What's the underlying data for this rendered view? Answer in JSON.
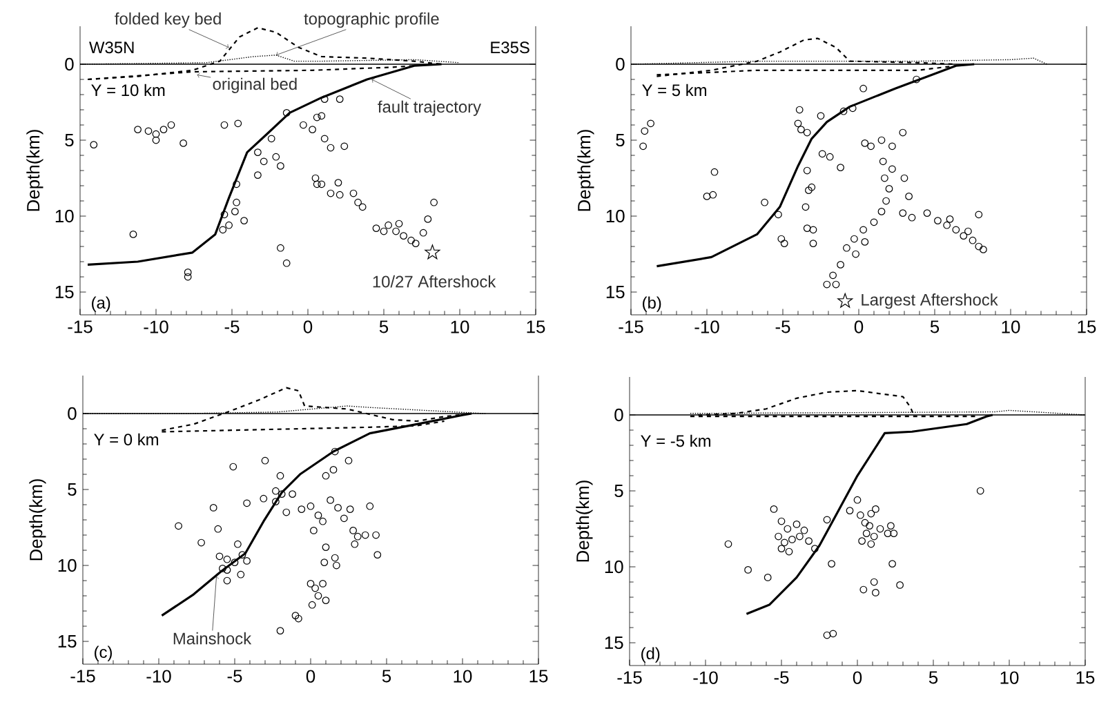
{
  "chart_data": [
    {
      "type": "scatter",
      "ylabel": "Depth(km)",
      "xlim": [
        -15,
        15
      ],
      "ylim": [
        16.5,
        -2.5
      ],
      "xticks": [
        -15,
        -10,
        -5,
        0,
        5,
        10,
        15
      ],
      "yticks": [
        0,
        5,
        10,
        15
      ],
      "ref_lines": [
        {
          "axis": "y",
          "value": 0
        }
      ],
      "annotations": [
        "W35N",
        "E35S",
        "Y = 10 km",
        "(a)",
        {
          "text": "folded key bed",
          "x": -5.2,
          "y": -1.1
        },
        {
          "text": "topographic profile",
          "x": -2.1,
          "y": -0.6
        },
        {
          "text": "original bed",
          "x": -7.3,
          "y": 0.7
        },
        {
          "text": "fault trajectory",
          "x": 4.2,
          "y": 1.0
        },
        {
          "text": "10/27 Aftershock",
          "x": 8.2,
          "y": 12.4
        }
      ],
      "series": [
        {
          "type": "line",
          "line_style": "dotted",
          "color": "#000000",
          "x": [
            -15,
            -6.7,
            -3.6,
            -2.1,
            -0.9,
            0.9,
            7,
            10
          ],
          "values": [
            0,
            -0.1,
            -0.5,
            -0.6,
            -0.2,
            -0.2,
            -0.3,
            -0.1
          ]
        },
        {
          "type": "line",
          "line_style": "dashed",
          "color": "#000000",
          "x": [
            -14.5,
            -11.2,
            -7.6,
            -5.8,
            -4.5,
            -3.3,
            -2.1,
            -0.6,
            0.9,
            3.9,
            7.0,
            8.8
          ],
          "values": [
            1.0,
            0.8,
            0.4,
            -0.2,
            -1.8,
            -2.4,
            -2.1,
            -1.1,
            -0.5,
            -0.4,
            -0.2,
            0
          ]
        },
        {
          "type": "line",
          "line_style": "dashed",
          "color": "#000000",
          "x": [
            -14.5,
            -7.6,
            0.3,
            5.5,
            7.0
          ],
          "values": [
            1.0,
            0.5,
            0.4,
            0.2,
            0.1
          ]
        },
        {
          "type": "line",
          "line_style": "solid",
          "color": "#000000",
          "x": [
            -14.5,
            -11.2,
            -7.6,
            -6.1,
            -5.2,
            -4.0,
            -2.7,
            -1.2,
            0.9,
            3.9,
            7.0,
            8.8
          ],
          "values": [
            13.2,
            13.0,
            12.4,
            11.2,
            8.8,
            5.8,
            4.6,
            3.2,
            2.2,
            1.0,
            0.1,
            0
          ]
        },
        {
          "type": "scatter",
          "marker": "circle",
          "color": "#000000",
          "x": [
            -14.1,
            -11.2,
            -10.5,
            -10,
            -9.5,
            -9,
            -10,
            -8.2,
            -5.5,
            -4.6,
            -11.5,
            -7.9,
            -7.9,
            -5.5,
            -4.8,
            -5.2,
            -4.2,
            -4.7,
            -5.6,
            -3.3,
            -2.9,
            -2.1,
            -2.4,
            -1.8,
            -3.3,
            -1.4,
            -4.7,
            -1.8,
            -1.4,
            -0.3,
            0.6,
            0.9,
            0.3,
            1.1,
            1.5,
            2.4,
            1.1,
            2.1,
            0.5,
            0.9,
            2.0,
            1.5,
            2.1,
            0.6,
            3.0,
            3.3,
            3.6,
            8.3,
            7.9,
            7.6,
            4.5,
            5.3,
            5.8,
            6.3,
            6.8,
            5.0,
            6.0,
            7.1
          ],
          "values": [
            5.3,
            4.3,
            4.4,
            4.6,
            4.3,
            4.0,
            5.0,
            5.2,
            4.0,
            3.9,
            11.2,
            13.7,
            14.0,
            9.9,
            9.7,
            10.6,
            10.3,
            9.1,
            10.9,
            5.8,
            6.4,
            6.1,
            4.9,
            6.7,
            7.3,
            3.2,
            7.9,
            12.1,
            13.1,
            4.0,
            3.5,
            3.4,
            4.3,
            4.9,
            5.5,
            5.4,
            2.3,
            2.3,
            7.5,
            7.9,
            7.8,
            8.5,
            8.6,
            7.9,
            8.5,
            9.1,
            9.4,
            9.1,
            10.2,
            11.1,
            10.8,
            10.6,
            11.0,
            11.3,
            11.6,
            11.0,
            10.5,
            11.8
          ]
        },
        {
          "type": "scatter",
          "marker": "star",
          "color": "#000000",
          "x": [
            8.2
          ],
          "values": [
            12.4
          ]
        }
      ]
    },
    {
      "type": "scatter",
      "ylabel": "Depth(km)",
      "xlim": [
        -15,
        15
      ],
      "ylim": [
        16.5,
        -2.5
      ],
      "xticks": [
        -15,
        -10,
        -5,
        0,
        5,
        10,
        15
      ],
      "yticks": [
        0,
        5,
        10,
        15
      ],
      "ref_lines": [
        {
          "axis": "y",
          "value": 0
        }
      ],
      "annotations": [
        "Y = 5 km",
        "(b)",
        {
          "text": "Largest Aftershock",
          "x": -0.9,
          "y": 15.6
        }
      ],
      "series": [
        {
          "type": "line",
          "line_style": "dotted",
          "color": "#000000",
          "x": [
            -15,
            -6.7,
            -2.1,
            3.9,
            10,
            11.5,
            12.4
          ],
          "values": [
            0,
            -0.2,
            -0.2,
            -0.2,
            -0.3,
            -0.4,
            0
          ]
        },
        {
          "type": "line",
          "line_style": "dashed",
          "color": "#000000",
          "x": [
            -13.3,
            -9.7,
            -6.7,
            -5.2,
            -3.6,
            -2.7,
            -1.5,
            -0.6,
            3.9,
            6.4
          ],
          "values": [
            0.8,
            0.4,
            -0.2,
            -0.8,
            -1.6,
            -1.7,
            -1.1,
            -0.2,
            -0.1,
            0
          ]
        },
        {
          "type": "line",
          "line_style": "dashed",
          "color": "#000000",
          "x": [
            -13.3,
            -6.7,
            3.9,
            6.4
          ],
          "values": [
            0.7,
            0.4,
            0.4,
            0.1
          ]
        },
        {
          "type": "line",
          "line_style": "solid",
          "color": "#000000",
          "x": [
            -13.3,
            -9.7,
            -6.7,
            -5.2,
            -4,
            -3.1,
            -2.1,
            -0.6,
            2.4,
            4.8,
            6.4,
            7.6
          ],
          "values": [
            13.3,
            12.7,
            11.2,
            9.4,
            6.7,
            4.9,
            3.8,
            2.8,
            1.6,
            0.7,
            0.1,
            0
          ]
        },
        {
          "type": "scatter",
          "marker": "circle",
          "color": "#000000",
          "x": [
            -14.1,
            -14.2,
            -13.7,
            -9.5,
            -10,
            -9.6,
            -6.2,
            -5.3,
            -4.9,
            -5.1,
            -4,
            -3.8,
            -3.4,
            -3.9,
            -2.5,
            -2.4,
            -1.9,
            -3.4,
            -3.1,
            -3.3,
            -3.5,
            -3.4,
            -3.0,
            -3.0,
            -1.2,
            -1.0,
            -0.4,
            0.3,
            0.4,
            0.8,
            1.5,
            2.2,
            2.9,
            1.6,
            2.2,
            1.7,
            2.0,
            1.8,
            1.5,
            1.0,
            0.3,
            -0.3,
            -0.8,
            -1.2,
            -1.7,
            -2.1,
            -1.5,
            -0.2,
            0.4,
            3.0,
            3.3,
            2.9,
            3.5,
            4.5,
            5.2,
            5.8,
            6.4,
            6.9,
            7.5,
            7.9,
            8.2,
            7.9,
            6.0,
            7.2,
            3.8
          ],
          "values": [
            4.4,
            5.4,
            3.9,
            7.1,
            8.7,
            8.6,
            9.1,
            9.9,
            11.8,
            11.5,
            3.9,
            4.3,
            4.5,
            3.0,
            3.4,
            5.9,
            6.1,
            7.0,
            8.1,
            8.3,
            9.4,
            10.8,
            10.9,
            11.8,
            6.8,
            3.1,
            2.9,
            1.6,
            5.2,
            5.4,
            5.0,
            5.4,
            4.5,
            6.4,
            6.9,
            7.5,
            8.2,
            9.0,
            9.7,
            10.4,
            10.9,
            11.5,
            12.1,
            13.2,
            13.9,
            14.5,
            14.5,
            12.5,
            11.7,
            7.5,
            8.7,
            9.8,
            10.1,
            9.8,
            10.3,
            10.6,
            10.9,
            11.3,
            11.6,
            12.0,
            12.2,
            9.9,
            10.2,
            11.0,
            1.0
          ]
        },
        {
          "type": "scatter",
          "marker": "star",
          "color": "#000000",
          "x": [
            -0.9
          ],
          "values": [
            15.6
          ]
        }
      ]
    },
    {
      "type": "scatter",
      "ylabel": "Depth(km)",
      "xlim": [
        -15,
        15
      ],
      "ylim": [
        16.5,
        -2.5
      ],
      "xticks": [
        -15,
        -10,
        -5,
        0,
        5,
        10,
        15
      ],
      "yticks": [
        0,
        5,
        10,
        15
      ],
      "ref_lines": [
        {
          "axis": "y",
          "value": 0
        }
      ],
      "annotations": [
        "Y = 0 km",
        "(c)",
        {
          "text": "Mainshock",
          "x": -6.2,
          "y": 10.7
        }
      ],
      "series": [
        {
          "type": "line",
          "line_style": "dotted",
          "color": "#000000",
          "x": [
            -15,
            -8.3,
            -2.2,
            2.4,
            3.9,
            11.5
          ],
          "values": [
            0,
            0,
            -0.1,
            -0.5,
            -0.4,
            0
          ]
        },
        {
          "type": "line",
          "line_style": "dashed",
          "color": "#000000",
          "x": [
            -9.8,
            -7.7,
            -5.2,
            -3.4,
            -1.6,
            -0.8,
            -0.4,
            2.4,
            5.4,
            7,
            8.8,
            10.6
          ],
          "values": [
            1.1,
            0.7,
            -0.2,
            -0.9,
            -1.7,
            -1.5,
            -0.5,
            -0.3,
            0.4,
            0.5,
            0.2,
            0
          ]
        },
        {
          "type": "line",
          "line_style": "dashed",
          "color": "#000000",
          "x": [
            -9.8,
            -5.2,
            3.9,
            7.0,
            8.8
          ],
          "values": [
            1.2,
            1.1,
            0.9,
            0.8,
            0.5
          ]
        },
        {
          "type": "line",
          "line_style": "solid",
          "color": "#000000",
          "x": [
            -9.8,
            -7.7,
            -5.9,
            -4.3,
            -3.1,
            -1.9,
            -0.7,
            1.5,
            3.9,
            7.0,
            10,
            10.6
          ],
          "values": [
            13.3,
            11.9,
            10.4,
            9.2,
            7.1,
            5.2,
            4.0,
            2.5,
            1.3,
            0.7,
            0.1,
            0
          ]
        },
        {
          "type": "scatter",
          "marker": "circle",
          "color": "#000000",
          "x": [
            -5.1,
            -3,
            -8.7,
            -7.2,
            -6.4,
            -6.1,
            -4.2,
            -3.1,
            -6.0,
            -5.5,
            -5.0,
            -5.5,
            -4.8,
            -4.5,
            -4.2,
            -5.8,
            -4.6,
            -5.5,
            -2.0,
            -2.3,
            -1.9,
            -2.3,
            -1.6,
            -1.2,
            -0.6,
            0,
            0.5,
            0.8,
            0.2,
            1.5,
            1.6,
            2.5,
            1.0,
            1.3,
            1.8,
            2.6,
            2.2,
            3.9,
            2.8,
            3.1,
            3.6,
            4.3,
            4.4,
            2.9,
            1.0,
            1.6,
            1.7,
            0.9,
            0,
            0.3,
            0.8,
            1.0,
            0.5,
            -1.0,
            -0.8,
            -2.0,
            0.1
          ],
          "values": [
            3.5,
            3.1,
            7.4,
            8.5,
            6.2,
            7.6,
            5.9,
            5.6,
            9.4,
            9.6,
            9.8,
            10.3,
            8.6,
            9.3,
            9.7,
            10.2,
            10.6,
            11.0,
            4.1,
            5.1,
            5.3,
            5.8,
            6.5,
            5.3,
            6.3,
            6.1,
            6.7,
            7.1,
            7.7,
            3.7,
            2.5,
            3.1,
            4.1,
            5.7,
            6.2,
            6.3,
            6.9,
            6.1,
            7.7,
            8.1,
            8.0,
            8.0,
            9.3,
            8.6,
            8.8,
            9.5,
            10.0,
            9.8,
            11.2,
            11.5,
            11.2,
            12.3,
            12.0,
            13.3,
            13.5,
            14.3,
            12.6
          ]
        }
      ]
    },
    {
      "type": "scatter",
      "ylabel": "Depth(km)",
      "xlim": [
        -15,
        15
      ],
      "ylim": [
        16.5,
        -2.5
      ],
      "xticks": [
        -15,
        -10,
        -5,
        0,
        5,
        10,
        15
      ],
      "yticks": [
        0,
        5,
        10,
        15
      ],
      "ref_lines": [
        {
          "axis": "y",
          "value": 0
        }
      ],
      "annotations": [
        "Y = -5 km",
        "(d)"
      ],
      "series": [
        {
          "type": "line",
          "line_style": "dotted",
          "color": "#000000",
          "x": [
            -11,
            9,
            10,
            15
          ],
          "values": [
            -0.1,
            -0.2,
            -0.3,
            0
          ]
        },
        {
          "type": "line",
          "line_style": "dashed",
          "color": "#000000",
          "x": [
            -10.5,
            -8,
            -6,
            -4,
            -2,
            0,
            1.5,
            3,
            3.5,
            3.7
          ],
          "values": [
            0,
            -0.1,
            -0.4,
            -1.1,
            -1.5,
            -1.6,
            -1.4,
            -1.2,
            -0.5,
            0
          ]
        },
        {
          "type": "line",
          "line_style": "dashed",
          "color": "#000000",
          "x": [
            -11,
            8
          ],
          "values": [
            0.1,
            0.1
          ]
        },
        {
          "type": "line",
          "line_style": "solid",
          "color": "#000000",
          "x": [
            -7.3,
            -5.8,
            -4.0,
            -2.5,
            -1.3,
            0,
            1.8,
            3.6,
            7.2,
            8.5,
            8.9
          ],
          "values": [
            13.1,
            12.5,
            10.7,
            8.6,
            6.4,
            4.0,
            1.2,
            1.1,
            0.6,
            0.1,
            0
          ]
        },
        {
          "type": "scatter",
          "marker": "circle",
          "color": "#000000",
          "x": [
            8.1,
            -8.5,
            -7.2,
            -5.9,
            -2.0,
            -1.6,
            -1.7,
            -5.5,
            -5,
            -4.6,
            -5.2,
            -4.8,
            -4.3,
            -4,
            -3.8,
            -3.5,
            -5.0,
            -4.5,
            -3.2,
            -2.8,
            -2.0,
            -0.5,
            0,
            0.2,
            0.5,
            0.9,
            1.2,
            0.8,
            0.6,
            1.1,
            1.5,
            2.0,
            2.2,
            2.4,
            0.3,
            0.9,
            0.4,
            1.2,
            1.1,
            2.3,
            2.8
          ],
          "values": [
            5.0,
            8.5,
            10.2,
            10.7,
            14.5,
            14.4,
            9.8,
            6.2,
            7.0,
            7.5,
            8.0,
            8.4,
            8.2,
            7.2,
            8.0,
            7.6,
            8.8,
            9.0,
            8.3,
            8.8,
            6.9,
            6.3,
            5.6,
            6.6,
            7.1,
            6.5,
            6.2,
            7.3,
            7.8,
            8.0,
            7.5,
            7.8,
            7.3,
            7.8,
            8.3,
            8.5,
            11.5,
            11.7,
            11.0,
            9.8,
            11.2
          ]
        }
      ]
    }
  ]
}
